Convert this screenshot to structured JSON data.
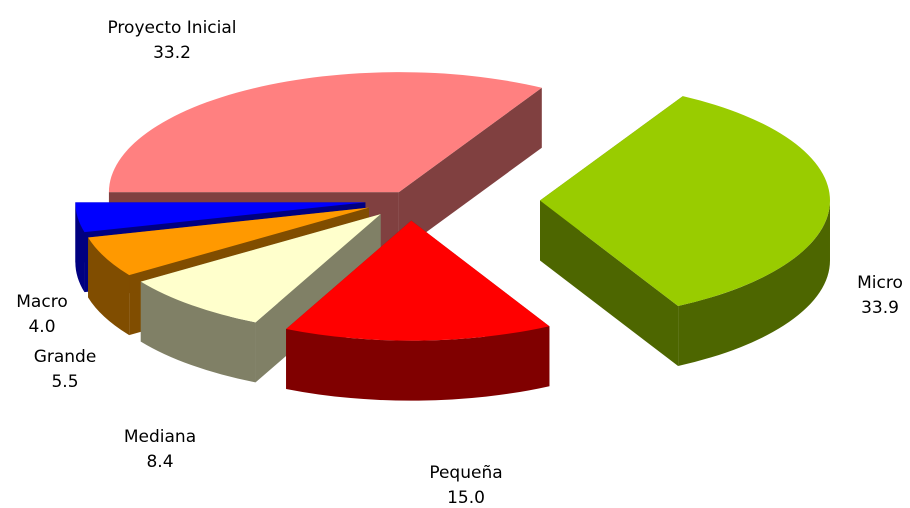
{
  "chart_data": {
    "type": "pie3d",
    "categories": [
      "Proyecto Inicial",
      "Micro",
      "Pequeña",
      "Mediana",
      "Grande",
      "Macro"
    ],
    "values": [
      33.2,
      33.9,
      15.0,
      8.4,
      5.5,
      4.0
    ],
    "value_labels": [
      "33.2",
      "33.9",
      "15.0",
      "8.4",
      "5.5",
      "4.0"
    ],
    "colors": [
      "#ff8080",
      "#99cc00",
      "#ff0000",
      "#ffffcc",
      "#ff9900",
      "#0000ff"
    ]
  }
}
